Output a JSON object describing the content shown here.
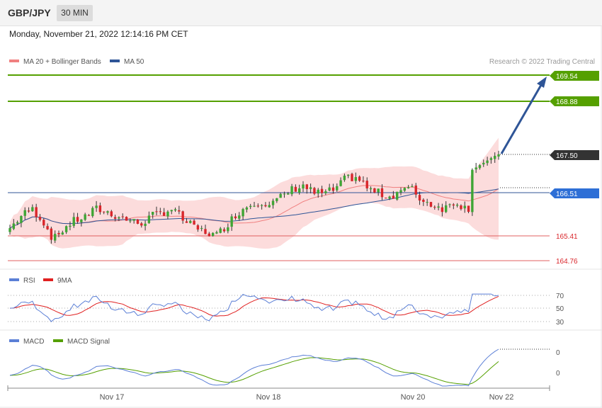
{
  "header": {
    "pair": "GBP/JPY",
    "timeframe": "30 MIN"
  },
  "timestamp": "Monday, November 21, 2022 12:14:16 PM CET",
  "copyright": "Research © 2022 Trading Central",
  "colors": {
    "bull": "#3fa535",
    "bear": "#d9262b",
    "ma20": "#f08080",
    "ma50": "#2f5597",
    "band": "#fbd6d6",
    "accent": "#2f5597",
    "green_level": "#55a000",
    "red_level": "#d9262b",
    "rsi": "#5b7fd6",
    "rsi_ma": "#e02020",
    "macd": "#5b7fd6",
    "macd_signal": "#55a000"
  },
  "chart_data": [
    {
      "type": "candlestick",
      "legend": [
        {
          "name": "MA 20 + Bollinger Bands",
          "color": "#f08080"
        },
        {
          "name": "MA 50",
          "color": "#2f5597"
        }
      ],
      "x_ticks": [
        "Nov 17",
        "Nov 18",
        "Nov 20",
        "Nov 22"
      ],
      "ylim": [
        164.2,
        169.9
      ],
      "levels": [
        {
          "value": 169.54,
          "label": "169.54",
          "kind": "resistance"
        },
        {
          "value": 168.88,
          "label": "168.88",
          "kind": "resistance"
        },
        {
          "value": 167.5,
          "label": "167.50",
          "kind": "last"
        },
        {
          "value": 166.51,
          "label": "166.51",
          "kind": "pivot"
        },
        {
          "value": 165.41,
          "label": "165.41",
          "kind": "support"
        },
        {
          "value": 164.76,
          "label": "164.76",
          "kind": "support"
        }
      ],
      "close_path": [
        165.6,
        165.9,
        166.1,
        165.8,
        165.3,
        165.6,
        165.8,
        165.9,
        166.1,
        166.0,
        165.9,
        165.8,
        165.7,
        165.9,
        166.0,
        166.1,
        165.8,
        165.6,
        165.5,
        165.4,
        165.7,
        166.0,
        166.2,
        166.3,
        166.2,
        166.4,
        166.6,
        166.7,
        166.5,
        166.5,
        166.6,
        166.9,
        166.9,
        166.6,
        166.5,
        166.4,
        166.6,
        166.6,
        166.3,
        166.2,
        166.1,
        166.3,
        166.1,
        166.2,
        166.6,
        167.1
      ],
      "projection": {
        "from": 167.5,
        "to": 169.54
      }
    },
    {
      "type": "line",
      "title": "RSI",
      "legend": [
        {
          "name": "RSI",
          "color": "#5b7fd6"
        },
        {
          "name": "9MA",
          "color": "#e02020"
        }
      ],
      "y_ticks": [
        "70",
        "50",
        "30"
      ],
      "ylim": [
        25,
        80
      ]
    },
    {
      "type": "line",
      "title": "MACD",
      "legend": [
        {
          "name": "MACD",
          "color": "#5b7fd6"
        },
        {
          "name": "MACD Signal",
          "color": "#55a000"
        }
      ],
      "y_ticks": [
        "0",
        "0"
      ]
    }
  ]
}
